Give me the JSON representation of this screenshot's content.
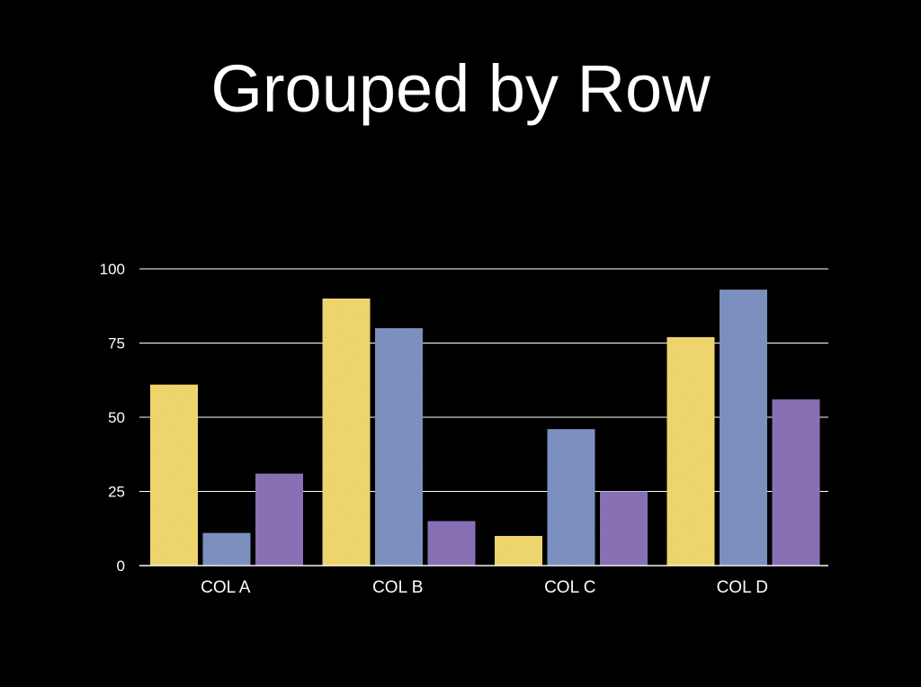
{
  "slide": {
    "title": "Grouped by Row"
  },
  "chart_data": {
    "type": "bar",
    "title": "",
    "xlabel": "",
    "ylabel": "",
    "categories": [
      "COL A",
      "COL B",
      "COL C",
      "COL D"
    ],
    "series": [
      {
        "values": [
          61,
          90,
          10,
          77
        ],
        "color": "#f2d86e"
      },
      {
        "values": [
          11,
          80,
          46,
          93
        ],
        "color": "#7e92c2"
      },
      {
        "values": [
          31,
          15,
          25,
          56
        ],
        "color": "#8a72b8"
      }
    ],
    "ylim": [
      0,
      100
    ],
    "yticks": [
      0,
      25,
      50,
      75,
      100
    ],
    "grid": true,
    "legend": "none",
    "colors": {
      "background": "#000000",
      "text": "#ffffff",
      "gridline": "#ffffff"
    }
  }
}
